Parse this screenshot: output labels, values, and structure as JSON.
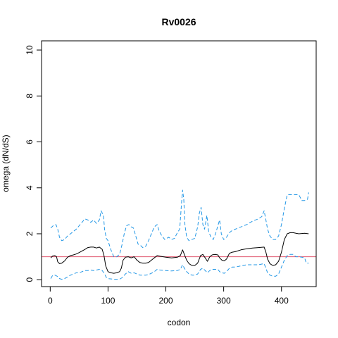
{
  "chart_data": {
    "type": "line",
    "title": "Rv0026",
    "xlabel": "codon",
    "ylabel": "omega (dN/dS)",
    "xlim": [
      -15,
      460
    ],
    "ylim": [
      -0.3,
      10.4
    ],
    "xticks": [
      0,
      100,
      200,
      300,
      400
    ],
    "yticks": [
      0,
      2,
      4,
      6,
      8,
      10
    ],
    "grid": false,
    "reference_line": {
      "y": 1,
      "color": "#DF536B"
    },
    "series": [
      {
        "style": "solid",
        "color": "#000000",
        "points": [
          [
            1,
            0.95
          ],
          [
            4,
            1.03
          ],
          [
            8,
            1.05
          ],
          [
            11,
            1.0
          ],
          [
            13,
            0.78
          ],
          [
            16,
            0.7
          ],
          [
            20,
            0.72
          ],
          [
            25,
            0.82
          ],
          [
            30,
            0.98
          ],
          [
            35,
            1.05
          ],
          [
            40,
            1.08
          ],
          [
            45,
            1.12
          ],
          [
            50,
            1.18
          ],
          [
            55,
            1.25
          ],
          [
            60,
            1.32
          ],
          [
            65,
            1.4
          ],
          [
            70,
            1.42
          ],
          [
            75,
            1.42
          ],
          [
            80,
            1.38
          ],
          [
            85,
            1.42
          ],
          [
            90,
            1.32
          ],
          [
            93,
            1.05
          ],
          [
            96,
            0.6
          ],
          [
            100,
            0.35
          ],
          [
            105,
            0.3
          ],
          [
            110,
            0.28
          ],
          [
            115,
            0.3
          ],
          [
            120,
            0.35
          ],
          [
            123,
            0.5
          ],
          [
            126,
            0.85
          ],
          [
            130,
            0.98
          ],
          [
            135,
            1.0
          ],
          [
            140,
            0.95
          ],
          [
            145,
            1.0
          ],
          [
            150,
            0.85
          ],
          [
            155,
            0.75
          ],
          [
            160,
            0.72
          ],
          [
            165,
            0.72
          ],
          [
            170,
            0.75
          ],
          [
            175,
            0.85
          ],
          [
            180,
            0.95
          ],
          [
            185,
            1.05
          ],
          [
            190,
            1.02
          ],
          [
            200,
            0.98
          ],
          [
            210,
            0.95
          ],
          [
            220,
            0.98
          ],
          [
            225,
            1.05
          ],
          [
            229,
            1.3
          ],
          [
            232,
            1.1
          ],
          [
            236,
            0.85
          ],
          [
            240,
            0.7
          ],
          [
            245,
            0.62
          ],
          [
            250,
            0.62
          ],
          [
            255,
            0.72
          ],
          [
            260,
            1.05
          ],
          [
            264,
            1.1
          ],
          [
            268,
            0.95
          ],
          [
            272,
            0.8
          ],
          [
            276,
            1.0
          ],
          [
            280,
            1.08
          ],
          [
            285,
            1.1
          ],
          [
            290,
            1.08
          ],
          [
            293,
            0.95
          ],
          [
            297,
            0.85
          ],
          [
            301,
            0.82
          ],
          [
            305,
            0.9
          ],
          [
            310,
            1.15
          ],
          [
            315,
            1.2
          ],
          [
            320,
            1.22
          ],
          [
            330,
            1.3
          ],
          [
            340,
            1.35
          ],
          [
            350,
            1.38
          ],
          [
            360,
            1.4
          ],
          [
            370,
            1.42
          ],
          [
            373,
            1.2
          ],
          [
            376,
            0.9
          ],
          [
            380,
            0.7
          ],
          [
            385,
            0.62
          ],
          [
            390,
            0.65
          ],
          [
            395,
            0.8
          ],
          [
            400,
            1.2
          ],
          [
            405,
            1.75
          ],
          [
            410,
            2.0
          ],
          [
            415,
            2.05
          ],
          [
            420,
            2.05
          ],
          [
            425,
            2.02
          ],
          [
            430,
            2.0
          ],
          [
            440,
            2.02
          ],
          [
            447,
            2.0
          ]
        ]
      },
      {
        "style": "dashed",
        "color": "#2297E6",
        "points": [
          [
            1,
            2.25
          ],
          [
            5,
            2.35
          ],
          [
            10,
            2.4
          ],
          [
            13,
            2.2
          ],
          [
            16,
            1.85
          ],
          [
            20,
            1.7
          ],
          [
            25,
            1.75
          ],
          [
            30,
            1.9
          ],
          [
            35,
            2.0
          ],
          [
            40,
            2.1
          ],
          [
            45,
            2.2
          ],
          [
            50,
            2.35
          ],
          [
            55,
            2.5
          ],
          [
            60,
            2.65
          ],
          [
            65,
            2.6
          ],
          [
            70,
            2.5
          ],
          [
            75,
            2.6
          ],
          [
            80,
            2.45
          ],
          [
            85,
            2.6
          ],
          [
            88,
            3.0
          ],
          [
            92,
            2.8
          ],
          [
            94,
            2.2
          ],
          [
            97,
            1.8
          ],
          [
            100,
            1.7
          ],
          [
            105,
            1.3
          ],
          [
            110,
            1.0
          ],
          [
            115,
            1.0
          ],
          [
            120,
            1.1
          ],
          [
            124,
            1.5
          ],
          [
            128,
            2.0
          ],
          [
            132,
            2.35
          ],
          [
            136,
            2.4
          ],
          [
            140,
            2.3
          ],
          [
            144,
            2.25
          ],
          [
            148,
            1.9
          ],
          [
            152,
            1.55
          ],
          [
            156,
            1.5
          ],
          [
            160,
            1.4
          ],
          [
            165,
            1.45
          ],
          [
            170,
            1.7
          ],
          [
            175,
            2.0
          ],
          [
            180,
            2.3
          ],
          [
            185,
            2.4
          ],
          [
            188,
            2.15
          ],
          [
            192,
            1.95
          ],
          [
            198,
            1.75
          ],
          [
            205,
            1.85
          ],
          [
            210,
            1.75
          ],
          [
            215,
            1.8
          ],
          [
            220,
            2.05
          ],
          [
            224,
            2.2
          ],
          [
            227,
            3.3
          ],
          [
            229,
            3.9
          ],
          [
            231,
            3.5
          ],
          [
            233,
            2.4
          ],
          [
            236,
            1.85
          ],
          [
            240,
            1.7
          ],
          [
            245,
            1.75
          ],
          [
            250,
            1.8
          ],
          [
            255,
            2.3
          ],
          [
            258,
            2.9
          ],
          [
            261,
            3.15
          ],
          [
            264,
            2.4
          ],
          [
            267,
            2.2
          ],
          [
            271,
            2.8
          ],
          [
            274,
            2.1
          ],
          [
            278,
            1.85
          ],
          [
            282,
            1.75
          ],
          [
            286,
            2.0
          ],
          [
            290,
            2.35
          ],
          [
            293,
            2.6
          ],
          [
            296,
            2.0
          ],
          [
            300,
            1.75
          ],
          [
            305,
            1.85
          ],
          [
            310,
            2.05
          ],
          [
            315,
            2.15
          ],
          [
            320,
            2.2
          ],
          [
            330,
            2.3
          ],
          [
            340,
            2.4
          ],
          [
            350,
            2.55
          ],
          [
            360,
            2.65
          ],
          [
            366,
            2.75
          ],
          [
            370,
            3.0
          ],
          [
            373,
            2.6
          ],
          [
            376,
            2.2
          ],
          [
            380,
            1.9
          ],
          [
            385,
            1.75
          ],
          [
            390,
            1.75
          ],
          [
            395,
            1.9
          ],
          [
            400,
            2.4
          ],
          [
            405,
            3.1
          ],
          [
            410,
            3.7
          ],
          [
            420,
            3.7
          ],
          [
            430,
            3.7
          ],
          [
            435,
            3.45
          ],
          [
            440,
            3.45
          ],
          [
            445,
            3.5
          ],
          [
            447,
            3.8
          ]
        ]
      },
      {
        "style": "dashed",
        "color": "#2297E6",
        "points": [
          [
            1,
            0.05
          ],
          [
            4,
            0.18
          ],
          [
            8,
            0.2
          ],
          [
            12,
            0.15
          ],
          [
            16,
            0.05
          ],
          [
            20,
            0.02
          ],
          [
            25,
            0.05
          ],
          [
            30,
            0.12
          ],
          [
            35,
            0.2
          ],
          [
            40,
            0.25
          ],
          [
            45,
            0.3
          ],
          [
            50,
            0.3
          ],
          [
            55,
            0.35
          ],
          [
            60,
            0.4
          ],
          [
            65,
            0.4
          ],
          [
            70,
            0.42
          ],
          [
            75,
            0.4
          ],
          [
            80,
            0.42
          ],
          [
            85,
            0.45
          ],
          [
            90,
            0.4
          ],
          [
            94,
            0.25
          ],
          [
            97,
            0.1
          ],
          [
            100,
            0.05
          ],
          [
            110,
            0.02
          ],
          [
            120,
            0.02
          ],
          [
            125,
            0.1
          ],
          [
            130,
            0.25
          ],
          [
            135,
            0.35
          ],
          [
            140,
            0.28
          ],
          [
            145,
            0.3
          ],
          [
            150,
            0.25
          ],
          [
            155,
            0.2
          ],
          [
            160,
            0.2
          ],
          [
            165,
            0.2
          ],
          [
            170,
            0.22
          ],
          [
            175,
            0.28
          ],
          [
            180,
            0.35
          ],
          [
            185,
            0.45
          ],
          [
            190,
            0.42
          ],
          [
            200,
            0.4
          ],
          [
            210,
            0.38
          ],
          [
            220,
            0.4
          ],
          [
            225,
            0.45
          ],
          [
            229,
            0.65
          ],
          [
            232,
            0.5
          ],
          [
            236,
            0.35
          ],
          [
            240,
            0.25
          ],
          [
            245,
            0.2
          ],
          [
            250,
            0.2
          ],
          [
            255,
            0.25
          ],
          [
            260,
            0.45
          ],
          [
            264,
            0.5
          ],
          [
            268,
            0.4
          ],
          [
            272,
            0.3
          ],
          [
            276,
            0.4
          ],
          [
            280,
            0.45
          ],
          [
            285,
            0.45
          ],
          [
            290,
            0.45
          ],
          [
            293,
            0.35
          ],
          [
            297,
            0.3
          ],
          [
            301,
            0.28
          ],
          [
            305,
            0.35
          ],
          [
            310,
            0.5
          ],
          [
            315,
            0.55
          ],
          [
            320,
            0.55
          ],
          [
            330,
            0.6
          ],
          [
            340,
            0.65
          ],
          [
            350,
            0.65
          ],
          [
            360,
            0.65
          ],
          [
            370,
            0.7
          ],
          [
            373,
            0.5
          ],
          [
            376,
            0.3
          ],
          [
            380,
            0.2
          ],
          [
            385,
            0.15
          ],
          [
            390,
            0.15
          ],
          [
            395,
            0.25
          ],
          [
            400,
            0.55
          ],
          [
            405,
            0.85
          ],
          [
            410,
            1.05
          ],
          [
            415,
            1.1
          ],
          [
            420,
            1.1
          ],
          [
            425,
            1.0
          ],
          [
            430,
            1.0
          ],
          [
            435,
            0.98
          ],
          [
            440,
            0.95
          ],
          [
            443,
            0.72
          ],
          [
            447,
            0.72
          ]
        ]
      }
    ]
  }
}
